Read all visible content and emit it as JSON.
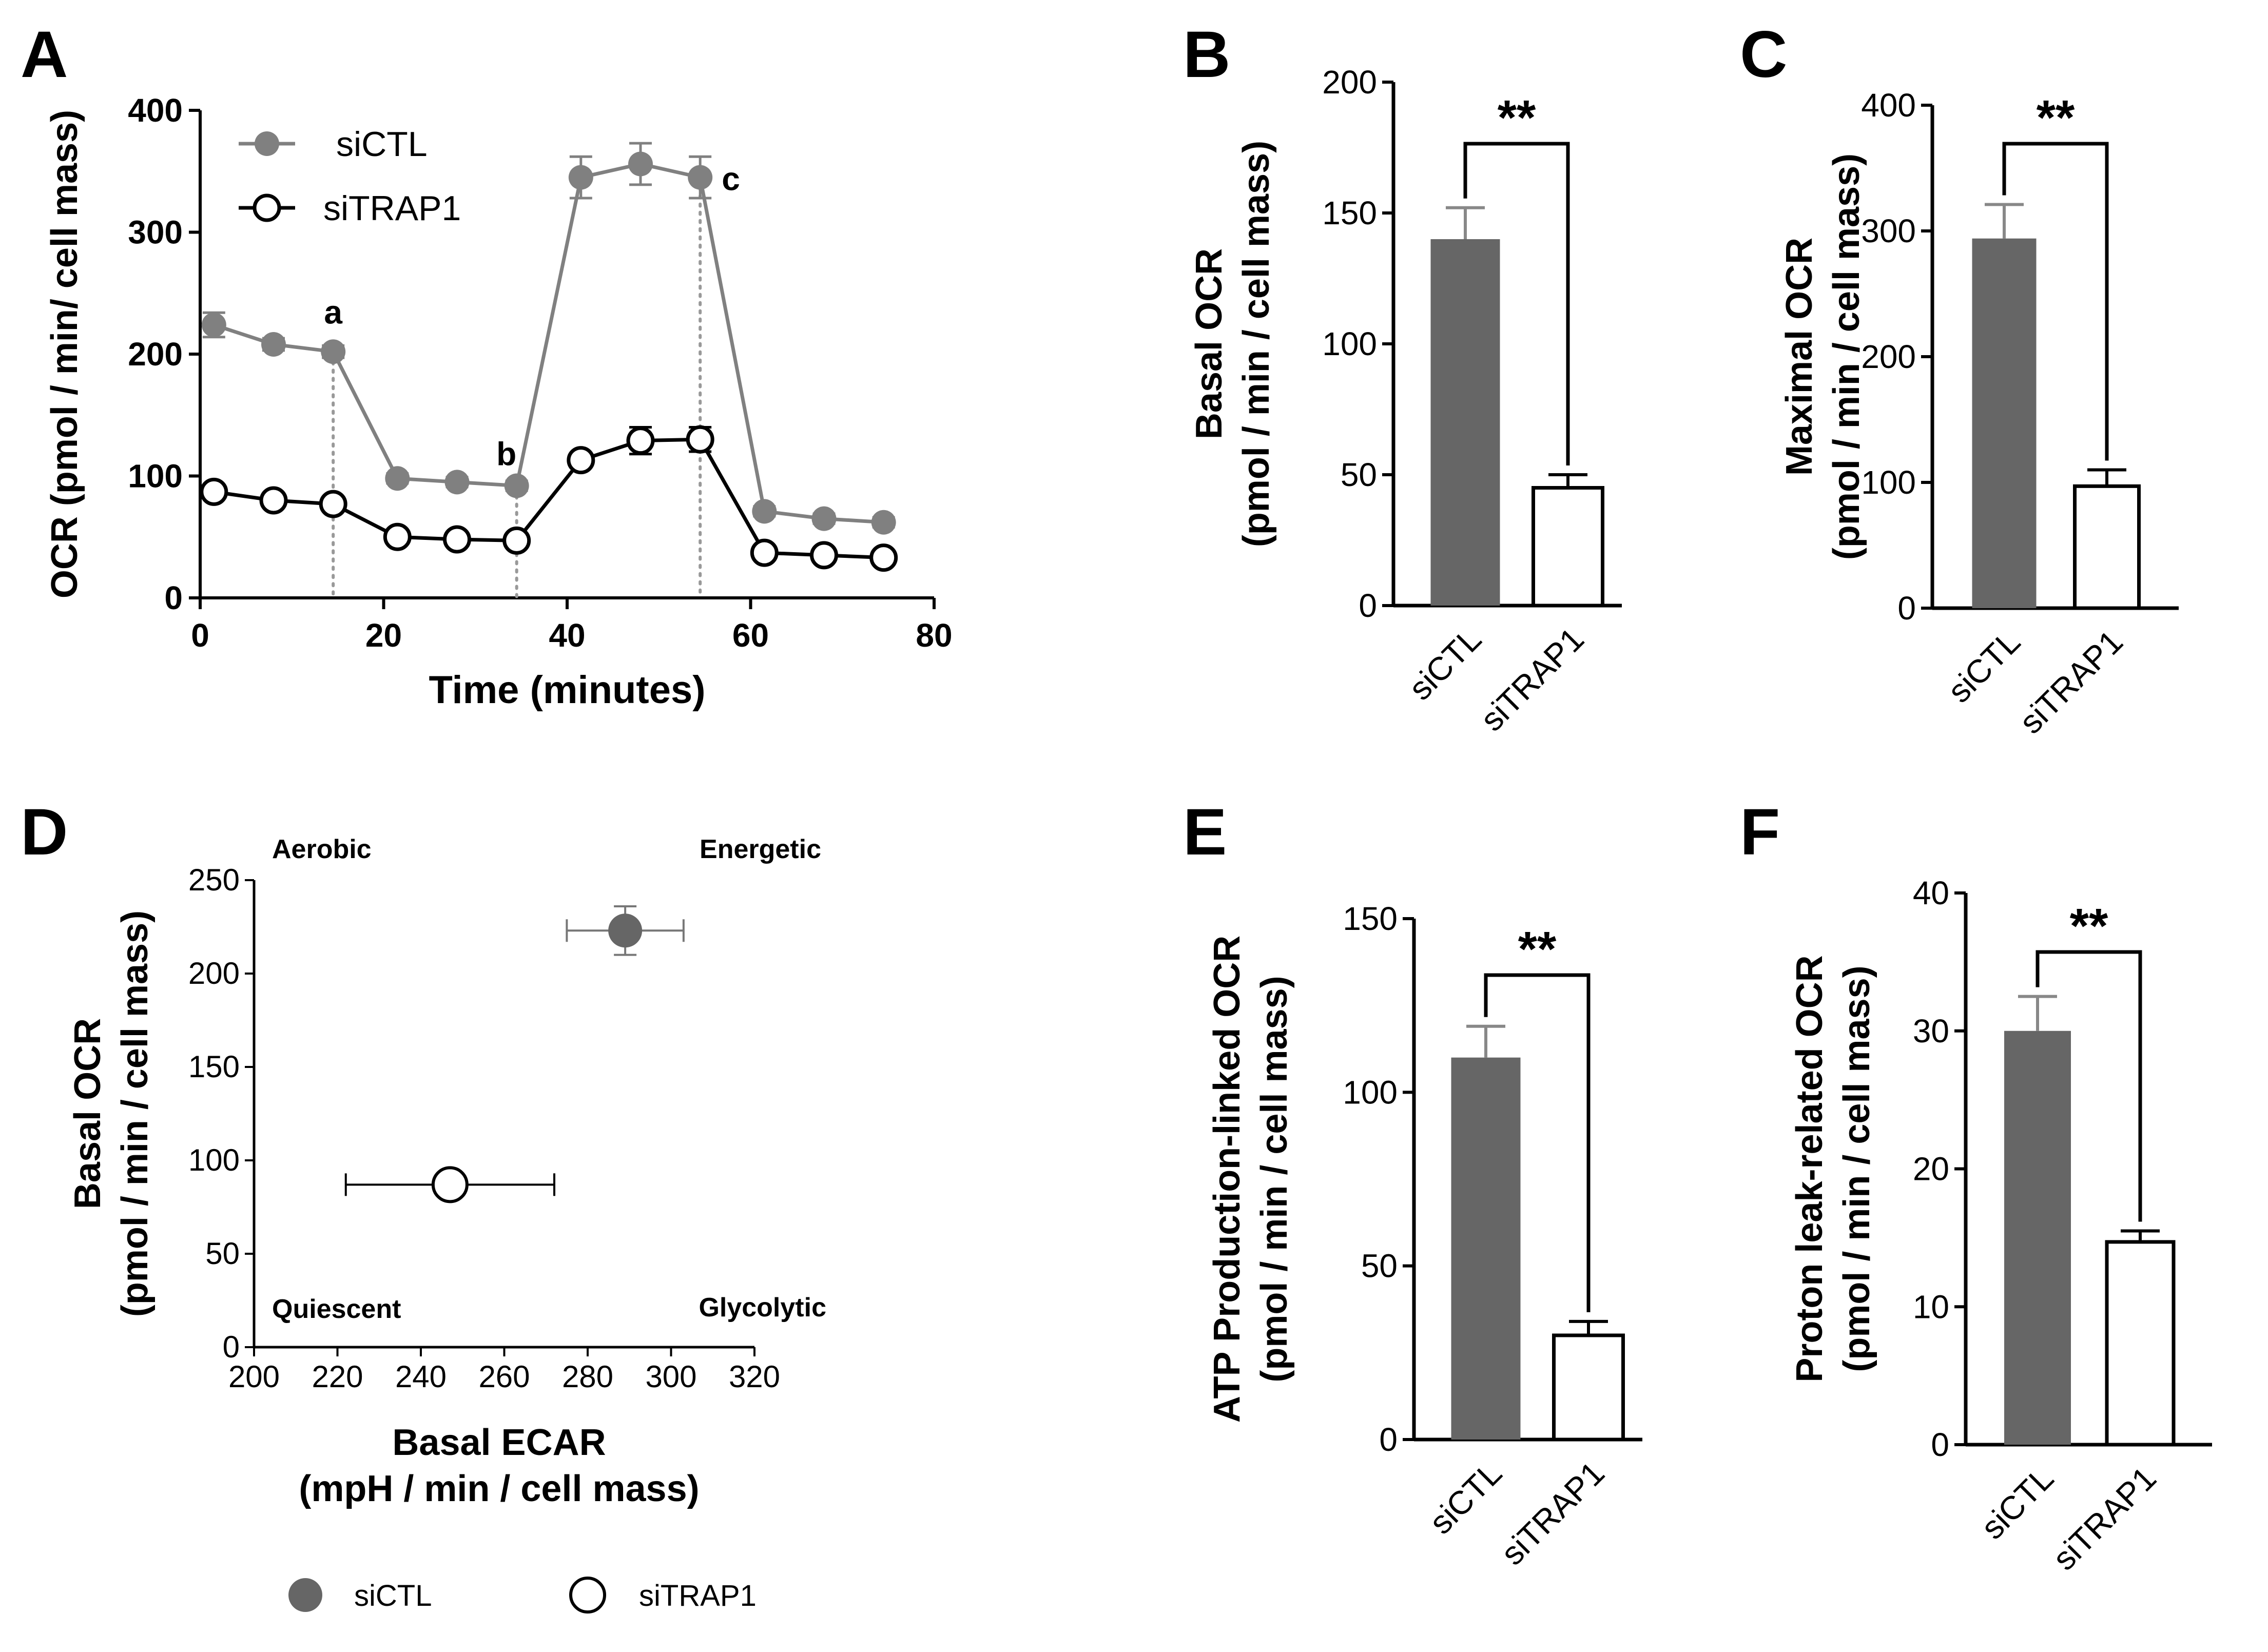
{
  "panels": {
    "A": "A",
    "B": "B",
    "C": "C",
    "D": "D",
    "E": "E",
    "F": "F"
  },
  "colors": {
    "siCTL": "#808080",
    "siCTL_bar": "#666666",
    "siTRAP1": "#ffffff",
    "line_siTRAP1": "#000000"
  },
  "chart_data": [
    {
      "panel": "A",
      "type": "line",
      "xlabel": "Time (minutes)",
      "ylabel": "OCR (pmol / min/ cell mass)",
      "xlim": [
        0,
        80
      ],
      "ylim": [
        0,
        400
      ],
      "xticks": [
        "0",
        "20",
        "40",
        "60",
        "80"
      ],
      "yticks": [
        "0",
        "100",
        "200",
        "300",
        "400"
      ],
      "x": [
        1.5,
        8,
        14.5,
        21.5,
        28,
        34.5,
        41.5,
        48,
        54.5,
        61.5,
        68,
        74.5
      ],
      "series": [
        {
          "name": "siCTL",
          "marker": "filled",
          "values": [
            224,
            208,
            202,
            98,
            95,
            92,
            345,
            356,
            345,
            71,
            65,
            62
          ],
          "errors": [
            10,
            5,
            5,
            4,
            4,
            4,
            17,
            17,
            17,
            4,
            4,
            4
          ]
        },
        {
          "name": "siTRAP1",
          "marker": "open",
          "values": [
            87,
            80,
            77,
            50,
            48,
            47,
            113,
            129,
            130,
            37,
            35,
            33
          ],
          "errors": [
            4,
            3,
            3,
            3,
            3,
            3,
            4,
            11,
            10,
            3,
            3,
            3
          ]
        }
      ],
      "injections": [
        {
          "x": 14.5,
          "label": "a"
        },
        {
          "x": 34.5,
          "label": "b"
        },
        {
          "x": 54.5,
          "label": "c"
        }
      ],
      "legend": "top-left"
    },
    {
      "panel": "B",
      "type": "bar",
      "ylabel": [
        "Basal OCR",
        "(pmol / min / cell mass)"
      ],
      "categories": [
        "siCTL",
        "siTRAP1"
      ],
      "values": [
        140,
        45
      ],
      "errors": [
        12,
        5
      ],
      "ylim": [
        0,
        200
      ],
      "yticks": [
        "0",
        "50",
        "100",
        "150",
        "200"
      ],
      "significance": "**"
    },
    {
      "panel": "C",
      "type": "bar",
      "ylabel": [
        "Maximal OCR",
        "(pmol / min / cell mass)"
      ],
      "categories": [
        "siCTL",
        "siTRAP1"
      ],
      "values": [
        294,
        97
      ],
      "errors": [
        27,
        13
      ],
      "ylim": [
        0,
        400
      ],
      "yticks": [
        "0",
        "100",
        "200",
        "300",
        "400"
      ],
      "significance": "**"
    },
    {
      "panel": "D",
      "type": "scatter",
      "xlabel": [
        "Basal ECAR",
        "(mpH / min / cell mass)"
      ],
      "ylabel": [
        "Basal OCR",
        "(pmol / min / cell mass)"
      ],
      "xlim": [
        200,
        320
      ],
      "ylim": [
        0,
        250
      ],
      "xticks": [
        "200",
        "220",
        "240",
        "260",
        "280",
        "300",
        "320"
      ],
      "yticks": [
        "0",
        "50",
        "100",
        "150",
        "200",
        "250"
      ],
      "series": [
        {
          "name": "siCTL",
          "marker": "filled",
          "x": 289,
          "y": 223,
          "xerr": 14,
          "yerr": 13
        },
        {
          "name": "siTRAP1",
          "marker": "open",
          "x": 247,
          "y": 87,
          "xerr": 25,
          "yerr": 0
        }
      ],
      "quadrants": {
        "top_left": "Aerobic",
        "top_right": "Energetic",
        "bottom_left": "Quiescent",
        "bottom_right": "Glycolytic"
      },
      "legend": "bottom"
    },
    {
      "panel": "E",
      "type": "bar",
      "ylabel": [
        "ATP Production-linked OCR",
        "(pmol / min / cell mass)"
      ],
      "categories": [
        "siCTL",
        "siTRAP1"
      ],
      "values": [
        110,
        30
      ],
      "errors": [
        9,
        4
      ],
      "ylim": [
        0,
        150
      ],
      "yticks": [
        "0",
        "50",
        "100",
        "150"
      ],
      "significance": "**"
    },
    {
      "panel": "F",
      "type": "bar",
      "ylabel": [
        "Proton leak-related OCR",
        "(pmol / min / cell mass)"
      ],
      "categories": [
        "siCTL",
        "siTRAP1"
      ],
      "values": [
        30,
        14.7
      ],
      "errors": [
        2.5,
        0.8
      ],
      "ylim": [
        0,
        40
      ],
      "yticks": [
        "0",
        "10",
        "20",
        "30",
        "40"
      ],
      "significance": "**"
    }
  ]
}
